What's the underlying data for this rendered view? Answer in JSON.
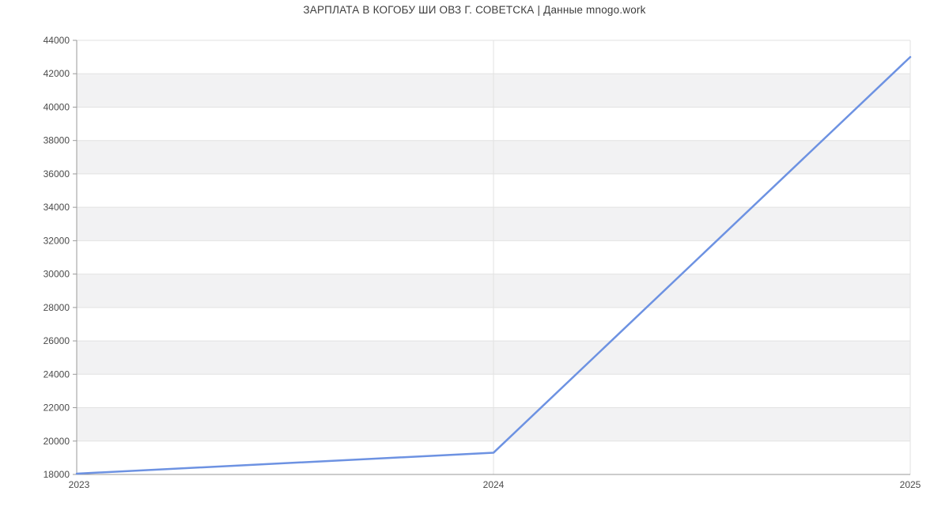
{
  "header": {
    "title": "ЗАРПЛАТА В КОГОБУ ШИ ОВЗ Г. СОВЕТСКА | Данные mnogo.work"
  },
  "chart_data": {
    "type": "line",
    "title": "ЗАРПЛАТА В КОГОБУ ШИ ОВЗ Г. СОВЕТСКА | Данные mnogo.work",
    "x": [
      2023,
      2024,
      2025
    ],
    "x_tick_labels": [
      "2023",
      "2024",
      "2025"
    ],
    "series": [
      {
        "values": [
          18050,
          19300,
          43000
        ]
      }
    ],
    "xlabel": "",
    "ylabel": "",
    "ylim": [
      18000,
      44000
    ],
    "ytick_step": 2000,
    "ytick_labels": [
      "18000",
      "20000",
      "22000",
      "24000",
      "26000",
      "28000",
      "30000",
      "32000",
      "34000",
      "36000",
      "38000",
      "40000",
      "42000",
      "44000"
    ],
    "grid": "alternating-horizontal-bands-with-year-gridlines",
    "legend": "none",
    "colors": {
      "line": "#6d92e2",
      "band": "#f2f2f3",
      "gridline": "#e2e2e2",
      "axis": "#9a9a9a",
      "tick_text": "#4a4a4a",
      "title_text": "#3d3d3d",
      "background": "#ffffff"
    }
  }
}
